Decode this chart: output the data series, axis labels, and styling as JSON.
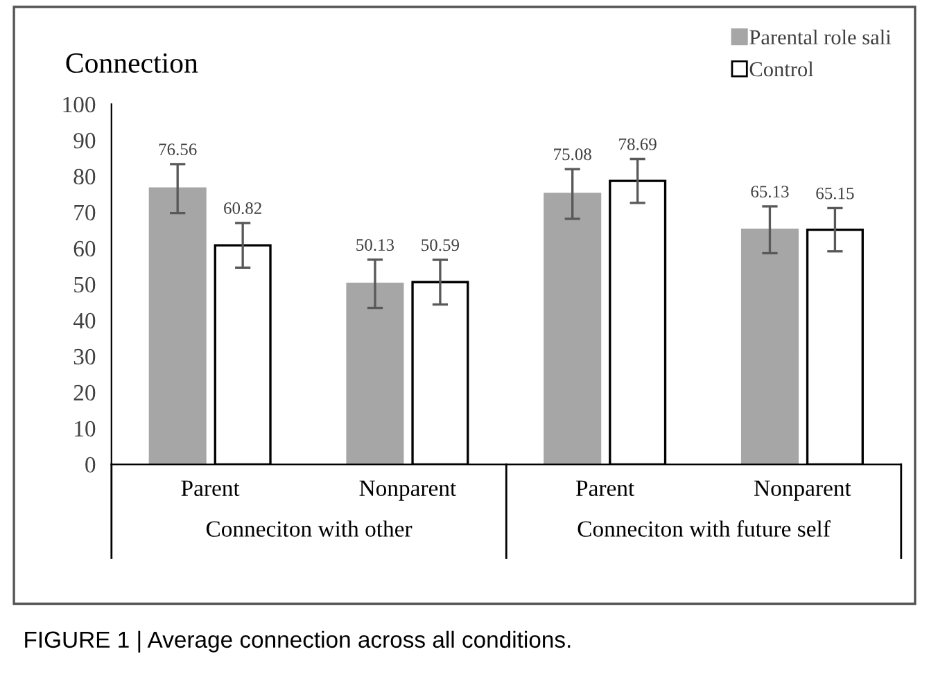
{
  "chart_data": {
    "type": "bar",
    "title": "Connection",
    "categories": [
      "Parent",
      "Nonparent",
      "Parent",
      "Nonparent"
    ],
    "series": [
      {
        "name": "Parental role sali",
        "color": "#a6a6a6",
        "values": [
          76.56,
          50.13,
          75.08,
          65.13
        ],
        "errors": [
          6.8,
          6.7,
          6.9,
          6.5
        ]
      },
      {
        "name": "Control",
        "color": "#ffffff",
        "values": [
          60.82,
          50.59,
          78.69,
          65.15
        ],
        "errors": [
          6.2,
          6.2,
          6.1,
          6.0
        ]
      }
    ],
    "ylim": [
      0,
      100
    ],
    "yticks": [
      0,
      10,
      20,
      30,
      40,
      50,
      60,
      70,
      80,
      90,
      100
    ],
    "data_labels": true,
    "legend": "top right",
    "grid": false,
    "annotations": [
      "Conneciton with other",
      "Conneciton with future self",
      "FIGURE 1 | Average connection across all conditions."
    ]
  }
}
